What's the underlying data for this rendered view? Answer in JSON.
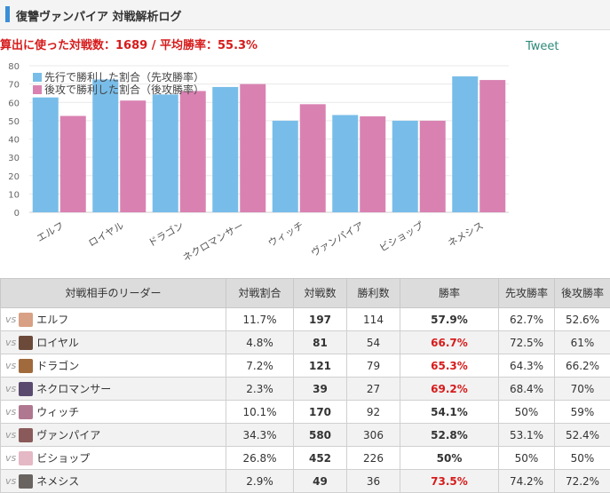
{
  "header": {
    "title": "復讐ヴァンパイア 対戦解析ログ"
  },
  "summary": {
    "text": "算出に使った対戦数：1689 / 平均勝率：55.3%"
  },
  "tweet_label": "Tweet",
  "colors": {
    "first": "#78bde9",
    "second": "#d982b2",
    "accent": "#3b8ed8",
    "rate": "#e8720c",
    "rate_high": "#d61b1b"
  },
  "chart_data": {
    "type": "bar",
    "categories": [
      "エルフ",
      "ロイヤル",
      "ドラゴン",
      "ネクロマンサー",
      "ウィッチ",
      "ヴァンパイア",
      "ビショップ",
      "ネメシス"
    ],
    "series": [
      {
        "name": "先行で勝利した割合（先攻勝率）",
        "values": [
          62.7,
          72.5,
          64.3,
          68.4,
          50,
          53.1,
          50,
          74.2
        ]
      },
      {
        "name": "後攻で勝利した割合（後攻勝率）",
        "values": [
          52.6,
          61,
          66.2,
          70,
          59,
          52.4,
          50,
          72.2
        ]
      }
    ],
    "ylim": [
      0,
      80
    ],
    "yticks": [
      0,
      10,
      20,
      30,
      40,
      50,
      60,
      70,
      80
    ],
    "legend": "top-left",
    "grid": true
  },
  "table": {
    "headers": [
      "対戦相手のリーダー",
      "対戦割合",
      "対戦数",
      "勝利数",
      "勝率",
      "先攻勝率",
      "後攻勝率"
    ],
    "vs_label": "vs",
    "rows": [
      {
        "leader": "エルフ",
        "share": "11.7%",
        "matches": "197",
        "wins": "114",
        "rate": "57.9%",
        "first": "62.7%",
        "second": "52.6%",
        "avatar": "#d8a084"
      },
      {
        "leader": "ロイヤル",
        "share": "4.8%",
        "matches": "81",
        "wins": "54",
        "rate": "66.7%",
        "first": "72.5%",
        "second": "61%",
        "avatar": "#6b4a3a"
      },
      {
        "leader": "ドラゴン",
        "share": "7.2%",
        "matches": "121",
        "wins": "79",
        "rate": "65.3%",
        "first": "64.3%",
        "second": "66.2%",
        "avatar": "#a06a3c"
      },
      {
        "leader": "ネクロマンサー",
        "share": "2.3%",
        "matches": "39",
        "wins": "27",
        "rate": "69.2%",
        "first": "68.4%",
        "second": "70%",
        "avatar": "#5a4a6e"
      },
      {
        "leader": "ウィッチ",
        "share": "10.1%",
        "matches": "170",
        "wins": "92",
        "rate": "54.1%",
        "first": "50%",
        "second": "59%",
        "avatar": "#b07890"
      },
      {
        "leader": "ヴァンパイア",
        "share": "34.3%",
        "matches": "580",
        "wins": "306",
        "rate": "52.8%",
        "first": "53.1%",
        "second": "52.4%",
        "avatar": "#8a5a5a"
      },
      {
        "leader": "ビショップ",
        "share": "26.8%",
        "matches": "452",
        "wins": "226",
        "rate": "50%",
        "first": "50%",
        "second": "50%",
        "avatar": "#e4b8c4"
      },
      {
        "leader": "ネメシス",
        "share": "2.9%",
        "matches": "49",
        "wins": "36",
        "rate": "73.5%",
        "first": "74.2%",
        "second": "72.2%",
        "avatar": "#6a6460"
      }
    ]
  }
}
